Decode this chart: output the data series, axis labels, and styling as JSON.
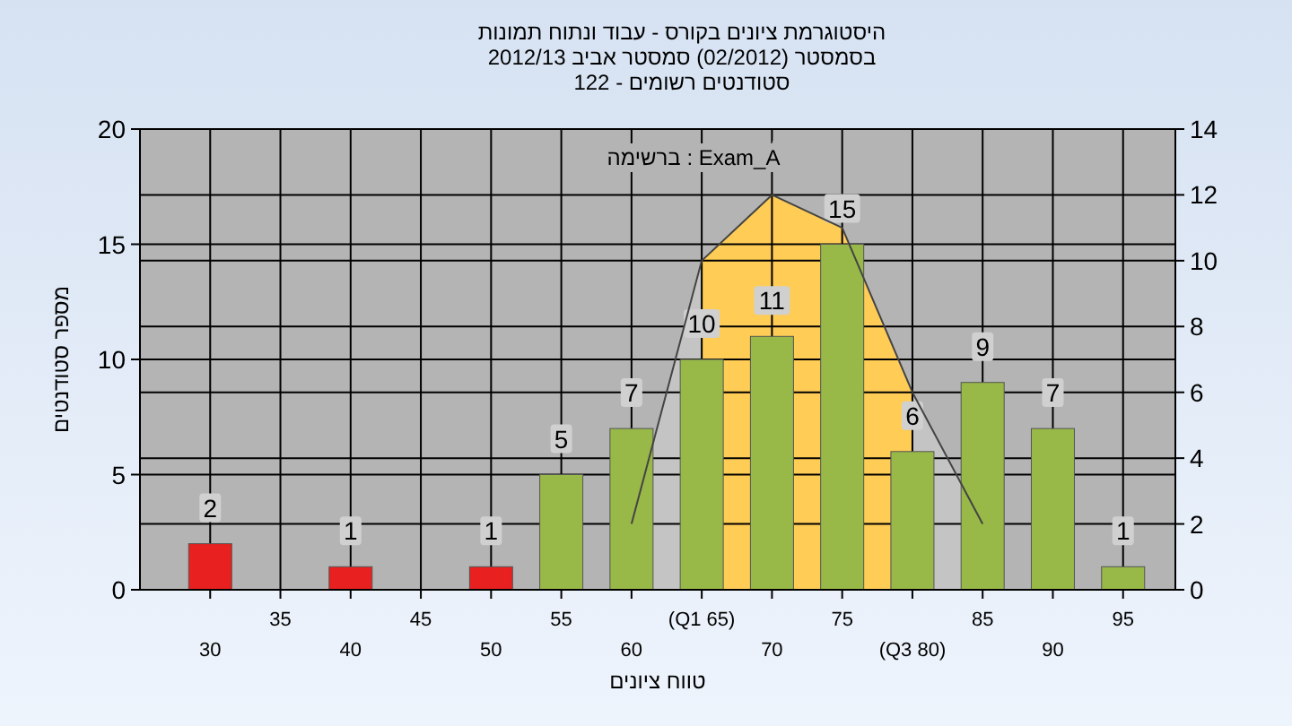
{
  "chart_data": {
    "type": "bar",
    "title": "היסטוגרמת ציונים בקורס - עבוד ונתוח תמונות",
    "subtitle": "בסמסטר  (02/2012)  סמסטר אביב 2012/13\nסטודנטים רשומים - 122",
    "xlabel": "טווח ציונים",
    "ylabel": "מספר סטודנטים",
    "annotations": [
      "ברשימה : Exam_A"
    ],
    "categories": [
      "30",
      "35",
      "40",
      "45",
      "50",
      "55",
      "60",
      "(Q1 65)",
      "70",
      "75",
      "(Q3 80)",
      "85",
      "90",
      "95"
    ],
    "series": [
      {
        "type": "area",
        "axis": "y2",
        "color": "#c4c4c4",
        "values": [
          null,
          null,
          null,
          null,
          null,
          null,
          2,
          10,
          null,
          null,
          6,
          2,
          null,
          null
        ]
      },
      {
        "type": "area",
        "axis": "y2",
        "color": "#ffcc55",
        "values": [
          null,
          null,
          null,
          null,
          null,
          null,
          null,
          10,
          12,
          11,
          6,
          null,
          null,
          null
        ]
      },
      {
        "colors": [
          "#e82020",
          "#e82020",
          "#e82020",
          "#e82020",
          "#e82020",
          "#98b848",
          "#98b848",
          "#98b848",
          "#98b848",
          "#98b848",
          "#98b848",
          "#98b848",
          "#98b848",
          "#98b848"
        ],
        "values": [
          2,
          0,
          1,
          0,
          1,
          5,
          7,
          10,
          11,
          15,
          6,
          9,
          7,
          1
        ],
        "value_labels": [
          "2",
          null,
          "1",
          null,
          "1",
          "5",
          "7",
          "10",
          "11",
          "15",
          "6",
          "9",
          "7",
          "1"
        ]
      }
    ],
    "ylim": [
      0,
      20
    ],
    "yticks": [
      0,
      5,
      10,
      15,
      20
    ],
    "y2lim": [
      0,
      14
    ],
    "y2ticks": [
      0,
      2,
      4,
      6,
      8,
      10,
      12,
      14
    ],
    "grid": true
  }
}
